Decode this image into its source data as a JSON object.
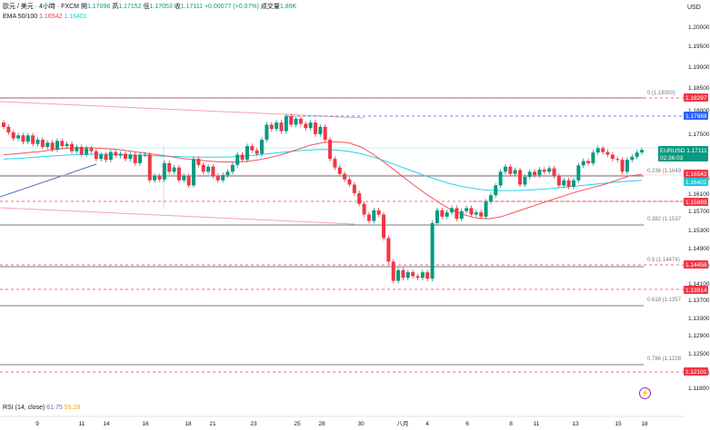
{
  "header": {
    "symbol": "歐元 / 美元 · 4小時 · FXCM",
    "open_label": "開",
    "open": "1.17096",
    "high_label": "高",
    "high": "1.17152",
    "low_label": "低",
    "low": "1.17053",
    "close_label": "收",
    "close": "1.17111",
    "change": "+0.00077 (+0.07%)",
    "volume_label": "成交量",
    "volume": "1.89K",
    "ema_label": "EMA 50/100",
    "ema50": "1.16542",
    "ema100": "1.16401",
    "currency": "USD"
  },
  "rsi": {
    "label": "RSI (14, close)",
    "value": "61.75",
    "ma": "55.28"
  },
  "colors": {
    "up": "#089981",
    "down": "#f23645",
    "ema50": "#f7525f",
    "ema100": "#22d3ee",
    "fib_line": "#787b86",
    "dashed": "#f23645",
    "trend_red": "#f7a3aa",
    "trend_blue": "#2962ff"
  },
  "y_axis_ticks": [
    "1.20000",
    "1.19500",
    "1.19000",
    "1.18500",
    "1.18000",
    "1.17500",
    "1.16500",
    "1.16100",
    "1.15700",
    "1.15300",
    "1.14900",
    "1.14500",
    "1.14100",
    "1.13700",
    "1.13300",
    "1.12900",
    "1.12500",
    "1.12100",
    "1.11800"
  ],
  "x_axis_ticks": [
    "9",
    "11",
    "14",
    "16",
    "18",
    "21",
    "23",
    "25",
    "28",
    "30",
    "八月",
    "4",
    "6",
    "8",
    "11",
    "13",
    "15",
    "18"
  ],
  "price_tags": [
    {
      "text": "1.18297",
      "kind": "red"
    },
    {
      "text": "1.17888",
      "kind": "blue"
    },
    {
      "text": "EURUSD  1.17111\n02:36:03",
      "kind": "green"
    },
    {
      "text": "1.16542",
      "kind": "red"
    },
    {
      "text": "1.16401",
      "kind": "cyan"
    },
    {
      "text": "1.15899",
      "kind": "red"
    },
    {
      "text": "1.14458",
      "kind": "red"
    },
    {
      "text": "1.13914",
      "kind": "red"
    },
    {
      "text": "1.12101",
      "kind": "red"
    }
  ],
  "fib_levels": [
    {
      "label": "0 (1.18300)"
    },
    {
      "label": "0.236 (1.1649"
    },
    {
      "label": "0.382 (1.1537"
    },
    {
      "label": "0.5 (1.14474)"
    },
    {
      "label": "0.618 (1.1357"
    },
    {
      "label": "0.786 (1.1228"
    }
  ],
  "chart_data": {
    "type": "candlestick",
    "x_ticks": [
      "9",
      "11",
      "14",
      "16",
      "18",
      "21",
      "23",
      "25",
      "28",
      "30",
      "八月",
      "4",
      "6",
      "8",
      "11",
      "13",
      "15",
      "18"
    ],
    "y_range": [
      1.116,
      1.202
    ],
    "closes": [
      1.1765,
      1.1752,
      1.1738,
      1.1745,
      1.173,
      1.1745,
      1.1725,
      1.1735,
      1.1718,
      1.1728,
      1.1712,
      1.1732,
      1.172,
      1.1725,
      1.1708,
      1.1718,
      1.17,
      1.1715,
      1.1708,
      1.169,
      1.17,
      1.1688,
      1.1706,
      1.1698,
      1.1702,
      1.169,
      1.17,
      1.168,
      1.17,
      1.17,
      1.164,
      1.165,
      1.1642,
      1.168,
      1.166,
      1.167,
      1.164,
      1.165,
      1.1628,
      1.169,
      1.1676,
      1.166,
      1.1672,
      1.165,
      1.164,
      1.1652,
      1.166,
      1.1676,
      1.17,
      1.1688,
      1.172,
      1.171,
      1.1702,
      1.1735,
      1.177,
      1.176,
      1.1775,
      1.1755,
      1.179,
      1.177,
      1.1784,
      1.1772,
      1.1762,
      1.1775,
      1.1748,
      1.1765,
      1.1735,
      1.169,
      1.167,
      1.1655,
      1.1642,
      1.163,
      1.161,
      1.1585,
      1.156,
      1.1545,
      1.157,
      1.156,
      1.1505,
      1.145,
      1.1405,
      1.143,
      1.1412,
      1.1425,
      1.1416,
      1.1412,
      1.1425,
      1.141,
      1.154,
      1.157,
      1.1555,
      1.1565,
      1.1575,
      1.155,
      1.1568,
      1.1575,
      1.156,
      1.1565,
      1.1555,
      1.159,
      1.1605,
      1.1628,
      1.166,
      1.1672,
      1.1655,
      1.1664,
      1.163,
      1.1648,
      1.166,
      1.1652,
      1.1665,
      1.166,
      1.1668,
      1.165,
      1.1628,
      1.164,
      1.1625,
      1.164,
      1.1675,
      1.1685,
      1.168,
      1.1705,
      1.1715,
      1.1706,
      1.17,
      1.169,
      1.1688,
      1.166,
      1.1688,
      1.1695,
      1.1705,
      1.1711
    ],
    "ema50": [
      1.17,
      1.1702,
      1.1705,
      1.1708,
      1.1712,
      1.1715,
      1.1716,
      1.1716,
      1.1714,
      1.1712,
      1.1708,
      1.1704,
      1.17,
      1.1696,
      1.1691,
      1.1688,
      1.1685,
      1.1683,
      1.1683,
      1.1684,
      1.1688,
      1.1694,
      1.1702,
      1.1712,
      1.1722,
      1.1728,
      1.173,
      1.1728,
      1.1718,
      1.17,
      1.1678,
      1.1655,
      1.1632,
      1.161,
      1.159,
      1.1572,
      1.156,
      1.1552,
      1.155,
      1.1555,
      1.1565,
      1.1575,
      1.1585,
      1.1595,
      1.1605,
      1.1614,
      1.1622,
      1.163,
      1.164,
      1.165,
      1.1654
    ],
    "ema100": [
      1.169,
      1.1691,
      1.1693,
      1.1695,
      1.1697,
      1.1699,
      1.17,
      1.1701,
      1.1701,
      1.17,
      1.1699,
      1.1698,
      1.1697,
      1.1696,
      1.1695,
      1.1694,
      1.1694,
      1.1694,
      1.1695,
      1.1697,
      1.17,
      1.1703,
      1.1706,
      1.1709,
      1.1711,
      1.1712,
      1.1711,
      1.1708,
      1.1702,
      1.1694,
      1.1684,
      1.1673,
      1.1662,
      1.1651,
      1.1641,
      1.1632,
      1.1625,
      1.162,
      1.1617,
      1.1616,
      1.1616,
      1.1617,
      1.1619,
      1.1621,
      1.1624,
      1.1627,
      1.163,
      1.1633,
      1.1636,
      1.1638,
      1.164
    ]
  }
}
